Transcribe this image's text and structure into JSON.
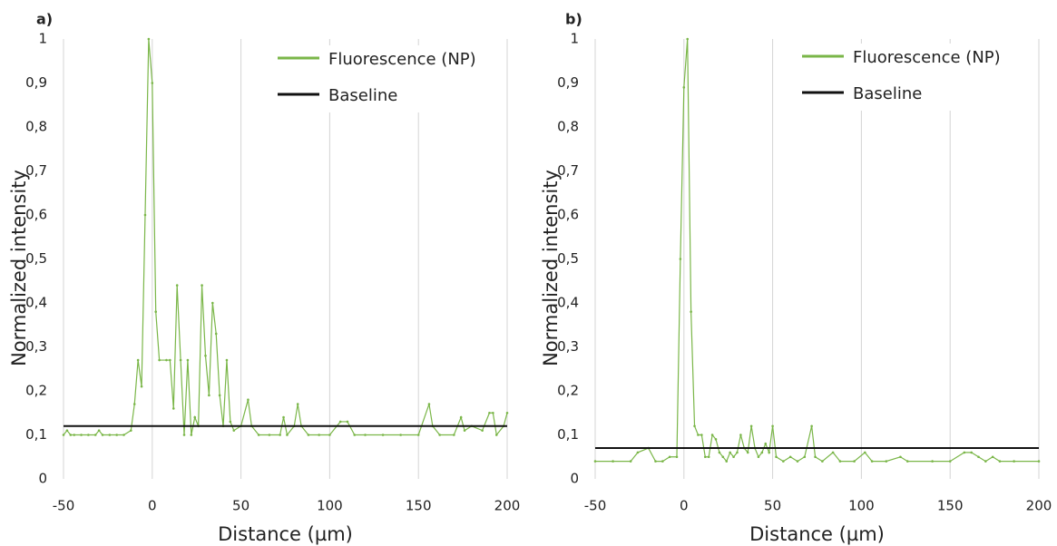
{
  "chart_data": [
    {
      "type": "line",
      "panel_label": "a)",
      "xlabel": "Distance (µm)",
      "ylabel": "Normalized intensity",
      "xlim": [
        -50,
        200
      ],
      "xticks": [
        -50,
        0,
        50,
        100,
        150,
        200
      ],
      "ylim": [
        0,
        1
      ],
      "yticks": [
        0,
        {
          "value": 0.1,
          "label": "0,1"
        },
        {
          "value": 0.2,
          "label": "0,2"
        },
        {
          "value": 0.3,
          "label": "0,3"
        },
        {
          "value": 0.4,
          "label": "0,4"
        },
        {
          "value": 0.5,
          "label": "0,5"
        },
        {
          "value": 0.6,
          "label": "0,6"
        },
        {
          "value": 0.7,
          "label": "0,7"
        },
        {
          "value": 0.8,
          "label": "0,8"
        },
        {
          "value": 0.9,
          "label": "0,9"
        },
        1
      ],
      "grid": "x",
      "legend": "upper right",
      "series": [
        {
          "name": "Fluorescence (NP)",
          "color": "#7ab648",
          "x": [
            -50,
            -48,
            -46,
            -44,
            -40,
            -36,
            -32,
            -30,
            -28,
            -24,
            -20,
            -16,
            -12,
            -10,
            -8,
            -6,
            -4,
            -2,
            0,
            2,
            4,
            8,
            10,
            12,
            14,
            16,
            18,
            20,
            22,
            24,
            26,
            28,
            30,
            32,
            34,
            36,
            38,
            40,
            42,
            44,
            46,
            50,
            54,
            56,
            60,
            66,
            72,
            74,
            76,
            80,
            82,
            84,
            88,
            94,
            100,
            106,
            110,
            114,
            120,
            130,
            140,
            150,
            156,
            158,
            162,
            170,
            174,
            176,
            180,
            186,
            190,
            192,
            194,
            198,
            200
          ],
          "values": [
            0.1,
            0.11,
            0.1,
            0.1,
            0.1,
            0.1,
            0.1,
            0.11,
            0.1,
            0.1,
            0.1,
            0.1,
            0.11,
            0.17,
            0.27,
            0.21,
            0.6,
            1.0,
            0.9,
            0.38,
            0.27,
            0.27,
            0.27,
            0.16,
            0.44,
            0.27,
            0.1,
            0.27,
            0.1,
            0.14,
            0.12,
            0.44,
            0.28,
            0.19,
            0.4,
            0.33,
            0.19,
            0.12,
            0.27,
            0.13,
            0.11,
            0.12,
            0.18,
            0.12,
            0.1,
            0.1,
            0.1,
            0.14,
            0.1,
            0.12,
            0.17,
            0.12,
            0.1,
            0.1,
            0.1,
            0.13,
            0.13,
            0.1,
            0.1,
            0.1,
            0.1,
            0.1,
            0.17,
            0.12,
            0.1,
            0.1,
            0.14,
            0.11,
            0.12,
            0.11,
            0.15,
            0.15,
            0.1,
            0.12,
            0.15
          ]
        },
        {
          "name": "Baseline",
          "color": "#111111",
          "x": [
            -50,
            200
          ],
          "values": [
            0.12,
            0.12
          ]
        }
      ]
    },
    {
      "type": "line",
      "panel_label": "b)",
      "xlabel": "Distance (µm)",
      "ylabel": "Normalized intensity",
      "xlim": [
        -50,
        200
      ],
      "xticks": [
        -50,
        0,
        50,
        100,
        150,
        200
      ],
      "ylim": [
        0,
        1
      ],
      "yticks": [
        0,
        {
          "value": 0.1,
          "label": "0,1"
        },
        {
          "value": 0.2,
          "label": "0,2"
        },
        {
          "value": 0.3,
          "label": "0,3"
        },
        {
          "value": 0.4,
          "label": "0,4"
        },
        {
          "value": 0.5,
          "label": "0,5"
        },
        {
          "value": 0.6,
          "label": "0,6"
        },
        {
          "value": 0.7,
          "label": "0,7"
        },
        {
          "value": 0.8,
          "label": "0,8"
        },
        {
          "value": 0.9,
          "label": "0,9"
        },
        1
      ],
      "grid": "x",
      "legend": "upper right",
      "series": [
        {
          "name": "Fluorescence (NP)",
          "color": "#7ab648",
          "x": [
            -50,
            -40,
            -30,
            -26,
            -20,
            -16,
            -12,
            -8,
            -4,
            -2,
            0,
            2,
            4,
            6,
            8,
            10,
            12,
            14,
            16,
            18,
            20,
            22,
            24,
            26,
            28,
            30,
            32,
            34,
            36,
            38,
            40,
            42,
            44,
            46,
            48,
            50,
            52,
            56,
            60,
            64,
            68,
            72,
            74,
            78,
            84,
            88,
            96,
            102,
            106,
            114,
            122,
            126,
            140,
            150,
            158,
            162,
            166,
            170,
            174,
            178,
            186,
            200
          ],
          "values": [
            0.04,
            0.04,
            0.04,
            0.06,
            0.07,
            0.04,
            0.04,
            0.05,
            0.05,
            0.5,
            0.89,
            1.0,
            0.38,
            0.12,
            0.1,
            0.1,
            0.05,
            0.05,
            0.1,
            0.09,
            0.06,
            0.05,
            0.04,
            0.06,
            0.05,
            0.06,
            0.1,
            0.07,
            0.06,
            0.12,
            0.07,
            0.05,
            0.06,
            0.08,
            0.06,
            0.12,
            0.05,
            0.04,
            0.05,
            0.04,
            0.05,
            0.12,
            0.05,
            0.04,
            0.06,
            0.04,
            0.04,
            0.06,
            0.04,
            0.04,
            0.05,
            0.04,
            0.04,
            0.04,
            0.06,
            0.06,
            0.05,
            0.04,
            0.05,
            0.04,
            0.04,
            0.04
          ]
        },
        {
          "name": "Baseline",
          "color": "#111111",
          "x": [
            -50,
            200
          ],
          "values": [
            0.07,
            0.07
          ]
        }
      ]
    }
  ]
}
